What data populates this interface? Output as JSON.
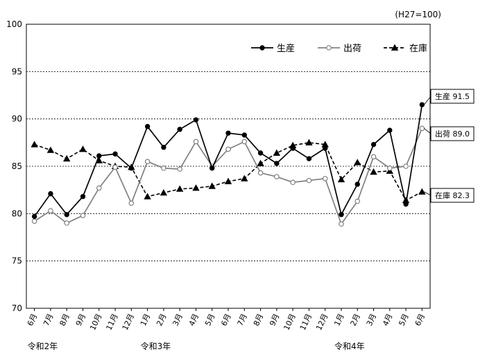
{
  "chart_data": {
    "type": "line",
    "title": "",
    "unit_note": "(H27=100)",
    "ylim": [
      70,
      100
    ],
    "yticks": [
      70,
      75,
      80,
      85,
      90,
      95,
      100
    ],
    "grid": true,
    "legend": "top-right",
    "categories": [
      "6月",
      "7月",
      "8月",
      "9月",
      "10月",
      "11月",
      "12月",
      "1月",
      "2月",
      "3月",
      "4月",
      "5月",
      "6月",
      "7月",
      "8月",
      "9月",
      "10月",
      "11月",
      "12月",
      "1月",
      "2月",
      "3月",
      "4月",
      "5月",
      "6月"
    ],
    "era_labels": [
      {
        "label": "令和2年",
        "start_index": 0
      },
      {
        "label": "令和3年",
        "start_index": 7
      },
      {
        "label": "令和4年",
        "start_index": 19
      }
    ],
    "series": [
      {
        "name": "生産",
        "color": "#000000",
        "line": "solid",
        "marker": "filled-circle",
        "values": [
          79.7,
          82.1,
          79.9,
          81.8,
          86.1,
          86.3,
          84.8,
          89.2,
          87.0,
          88.9,
          89.9,
          84.8,
          88.5,
          88.3,
          86.4,
          85.3,
          86.9,
          85.8,
          86.9,
          79.9,
          83.1,
          87.3,
          88.8,
          81.0,
          91.5
        ]
      },
      {
        "name": "出荷",
        "color": "#808080",
        "line": "solid",
        "marker": "open-circle",
        "values": [
          79.2,
          80.3,
          79.0,
          79.8,
          82.7,
          84.9,
          81.1,
          85.5,
          84.8,
          84.7,
          87.6,
          85.0,
          86.8,
          87.6,
          84.3,
          83.9,
          83.3,
          83.5,
          83.7,
          78.9,
          81.3,
          86.0,
          84.8,
          85.0,
          89.0
        ]
      },
      {
        "name": "在庫",
        "color": "#000000",
        "line": "dashed",
        "marker": "filled-triangle",
        "values": [
          87.3,
          86.7,
          85.8,
          86.8,
          85.6,
          85.0,
          84.9,
          81.8,
          82.2,
          82.6,
          82.7,
          82.9,
          83.4,
          83.7,
          85.3,
          86.4,
          87.2,
          87.5,
          87.3,
          83.6,
          85.4,
          84.4,
          84.5,
          81.4,
          82.3
        ]
      }
    ],
    "end_callouts": [
      {
        "series": "生産",
        "text": "生産 91.5"
      },
      {
        "series": "出荷",
        "text": "出荷 89.0"
      },
      {
        "series": "在庫",
        "text": "在庫 82.3"
      }
    ]
  }
}
